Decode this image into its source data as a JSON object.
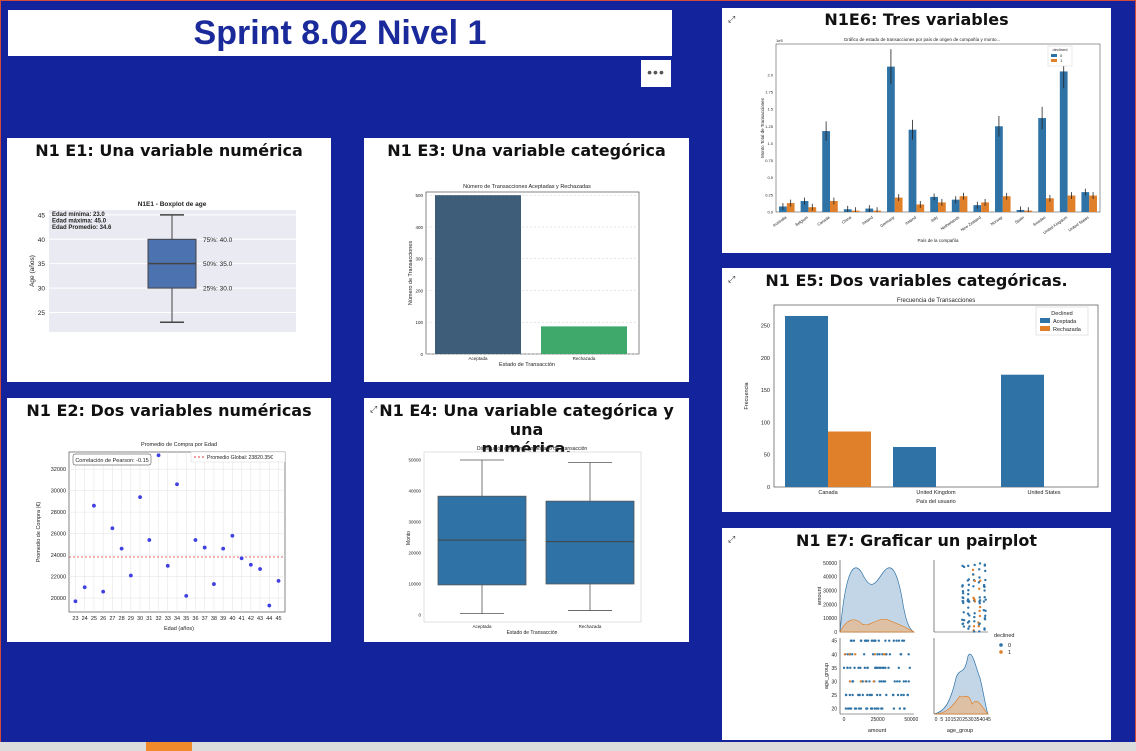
{
  "page_title": "Sprint 8.02 Nivel 1",
  "more_button": "•••",
  "icons": {
    "focus": "focus-mode-icon",
    "more": "more-options-icon"
  },
  "cards": {
    "e1": {
      "title": "N1 E1: Una variable numérica"
    },
    "e2": {
      "title": "N1 E2: Dos variables numéricas"
    },
    "e3": {
      "title": "N1 E3: Una variable categórica"
    },
    "e4": {
      "title_line1": "N1 E4: Una variable categórica y una",
      "title_line2": "numérica."
    },
    "e5": {
      "title": "N1 E5: Dos variables categóricas."
    },
    "e6": {
      "title": "N1E6: Tres variables"
    },
    "e7": {
      "title": "N1 E7: Graficar un pairplot"
    }
  },
  "chart_data": [
    {
      "id": "e1",
      "type": "boxplot",
      "title": "N1E1 - Boxplot de age",
      "ylabel": "Age (años)",
      "ylim": [
        21,
        46
      ],
      "yticks": [
        25,
        30,
        35,
        40,
        45
      ],
      "min": 23.0,
      "q1": 30.0,
      "median": 35.0,
      "q3": 40.0,
      "max": 45.0,
      "stats": [
        "Edad mínima: 23.0",
        "Edad máxima: 45.0",
        "Edad Promedio: 34.6"
      ],
      "annotations": [
        "75%: 40.0",
        "50%: 35.0",
        "25%: 30.0"
      ],
      "colors": {
        "box": "#4c72b0",
        "background": "#eaeaf2"
      }
    },
    {
      "id": "e2",
      "type": "scatter",
      "title": "Promedio de Compra por Edad",
      "xlabel": "Edad (años)",
      "ylabel": "Promedio de Compra (€)",
      "x": [
        23,
        24,
        25,
        26,
        27,
        28,
        29,
        30,
        31,
        32,
        33,
        34,
        35,
        36,
        37,
        38,
        39,
        40,
        41,
        42,
        43,
        44,
        45
      ],
      "y": [
        19700,
        21000,
        28600,
        20600,
        26500,
        24600,
        22100,
        29400,
        25400,
        33300,
        23000,
        30600,
        20200,
        25400,
        24700,
        21300,
        24600,
        25800,
        23700,
        23100,
        22700,
        19300,
        21600
      ],
      "xlim": [
        22.3,
        45.7
      ],
      "ylim": [
        18700,
        33600
      ],
      "yticks": [
        20000,
        22000,
        24000,
        26000,
        28000,
        30000,
        32000
      ],
      "reference_line": 23820.35,
      "legend": "Promedio Global: 23820.35€",
      "note": "Correlación de Pearson: -0.15",
      "colors": {
        "points": "#4040e0",
        "line": "#e03c3c"
      }
    },
    {
      "id": "e3",
      "type": "bar",
      "title": "Número de Transacciones Aceptadas y Rechazadas",
      "xlabel": "Estado de Transacción",
      "ylabel": "Número de Transacciones",
      "categories": [
        "Aceptada",
        "Rechazada"
      ],
      "values": [
        500,
        87
      ],
      "ylim": [
        0,
        510
      ],
      "yticks": [
        0,
        100,
        200,
        300,
        400,
        500
      ],
      "colors": [
        "#3e5d78",
        "#3fa96b"
      ]
    },
    {
      "id": "e4",
      "type": "boxplot",
      "title": "Distribución del Monto por Estado de Transacción",
      "xlabel": "Estado de Transacción",
      "ylabel": "Monto",
      "categories": [
        "Aceptada",
        "Rechazada"
      ],
      "ylim": [
        -2500,
        52500
      ],
      "yticks": [
        0,
        10000,
        20000,
        30000,
        40000,
        50000
      ],
      "boxes": [
        {
          "min": 200,
          "q1": 9500,
          "median": 24000,
          "q3": 38200,
          "max": 49900
        },
        {
          "min": 1200,
          "q1": 9800,
          "median": 23500,
          "q3": 36600,
          "max": 49100
        }
      ],
      "colors": {
        "box": "#2f73a6"
      }
    },
    {
      "id": "e5",
      "type": "bar",
      "title": "Frecuencia de Transacciones",
      "xlabel": "País del usuario",
      "ylabel": "Frecuencia",
      "categories": [
        "Canada",
        "United Kingdom",
        "United States"
      ],
      "series": [
        {
          "name": "Aceptada",
          "values": [
            265,
            62,
            174
          ]
        },
        {
          "name": "Rechazada",
          "values": [
            86,
            0,
            0
          ]
        }
      ],
      "legend_title": "Declined",
      "ylim": [
        0,
        282
      ],
      "yticks": [
        0,
        50,
        100,
        150,
        200,
        250
      ],
      "colors": [
        "#2f73a6",
        "#e0802a"
      ]
    },
    {
      "id": "e6",
      "type": "bar",
      "title": "Gráfico de estado de transacciones por país de origen de compañía y monto...",
      "xlabel": "País de la compañía",
      "ylabel": "Monto Total de Transacciones",
      "y_exponent": "1e5",
      "legend_title": "declined",
      "categories": [
        "Australia",
        "Belgium",
        "Canada",
        "China",
        "Ireland",
        "Germany",
        "Ireland",
        "Italy",
        "Netherlands",
        "New Zealand",
        "Norway",
        "Spain",
        "Sweden",
        "United Kingdom",
        "United States"
      ],
      "series": [
        {
          "name": "0",
          "values": [
            0.08,
            0.16,
            1.18,
            0.04,
            0.05,
            2.12,
            1.2,
            0.22,
            0.18,
            0.1,
            1.25,
            0.03,
            1.37,
            2.05,
            0.29
          ]
        },
        {
          "name": "1",
          "values": [
            0.13,
            0.07,
            0.16,
            0.02,
            0.02,
            0.21,
            0.11,
            0.14,
            0.23,
            0.14,
            0.23,
            0.02,
            0.2,
            0.24,
            0.24
          ]
        }
      ],
      "ylim": [
        0,
        2.45
      ],
      "yticks": [
        0.0,
        0.25,
        0.5,
        0.75,
        1.0,
        1.25,
        1.5,
        1.75,
        2.0
      ],
      "ytick_labels": [
        "0.0",
        "0.25",
        "0.5",
        "0.75",
        "1.0",
        "1.25",
        "1.5",
        "1.75",
        "2.0"
      ],
      "colors": [
        "#2f73a6",
        "#e0802a"
      ]
    },
    {
      "id": "e7",
      "type": "pairplot",
      "variables": [
        "amount",
        "age_group"
      ],
      "hue": "declined",
      "hue_levels": [
        "0",
        "1"
      ],
      "amount_ticks": [
        0,
        10000,
        20000,
        30000,
        40000,
        50000
      ],
      "amount_tick_labels": [
        "0",
        "25000",
        "50000"
      ],
      "age_ticks": [
        20,
        25,
        30,
        35,
        40,
        45
      ],
      "age_x_tick_labels": [
        "0",
        "5",
        "10",
        "15",
        "20",
        "25",
        "30",
        "35",
        "40",
        "45"
      ],
      "colors": [
        "#2f73a6",
        "#e0802a"
      ]
    }
  ]
}
